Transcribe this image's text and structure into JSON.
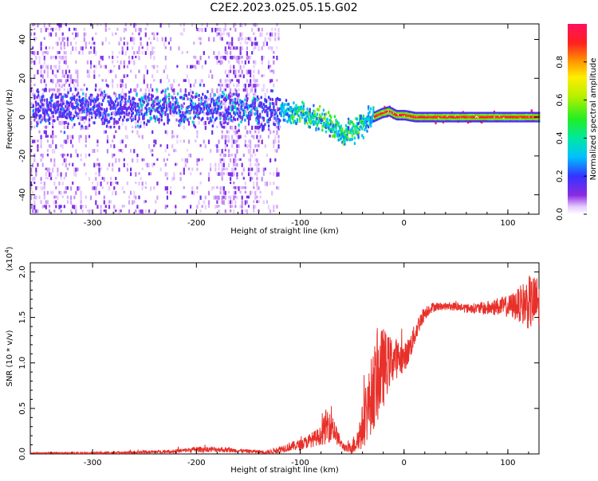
{
  "title": "C2E2.2023.025.05.15.G02",
  "chart_data": [
    {
      "type": "heatmap",
      "xlabel": "Height of straight line (km)",
      "ylabel": "Frequency (Hz)",
      "xlim": [
        -360,
        130
      ],
      "ylim": [
        -50,
        48
      ],
      "xticks": [
        -300,
        -200,
        -100,
        0,
        100
      ],
      "yticks": [
        -40,
        -20,
        0,
        20,
        40
      ],
      "ridge": {
        "description_points_x": [
          -360,
          -300,
          -250,
          -200,
          -150,
          -100,
          -80,
          -65,
          -58,
          -52,
          -45,
          -38,
          -30,
          -22,
          -15,
          -8,
          0,
          10,
          20,
          60,
          100,
          130
        ],
        "frequency": [
          5,
          5,
          5,
          5,
          4,
          2,
          -2,
          -7,
          -9,
          -7,
          -5,
          -2,
          0,
          2,
          3,
          1,
          1,
          0,
          0,
          0,
          0,
          0
        ]
      },
      "colorbar": {
        "label": "Normalized spectral amplitude",
        "range": [
          0.0,
          1.0
        ],
        "ticks": [
          0.0,
          0.2,
          0.4,
          0.6,
          0.8
        ],
        "tick_labels": [
          "0.0",
          "0.2",
          "0.4",
          "0.6",
          "0.8"
        ]
      }
    },
    {
      "type": "line",
      "xlabel": "Height of straight line (km)",
      "ylabel": "SNR (10 * v/v)",
      "yscale_label": "(x10",
      "yscale_exp": "4",
      "yscale_close": ")",
      "xlim": [
        -360,
        130
      ],
      "ylim": [
        0.0,
        2.1
      ],
      "xticks": [
        -300,
        -200,
        -100,
        0,
        100
      ],
      "yticks": [
        0.0,
        0.5,
        1.0,
        1.5,
        2.0
      ],
      "ytick_labels": [
        "0.0",
        "0.5",
        "1.0",
        "1.5",
        "2.0"
      ],
      "series": [
        {
          "name": "SNR",
          "color": "#e8302a",
          "x": [
            -360,
            -300,
            -250,
            -220,
            -200,
            -180,
            -150,
            -130,
            -120,
            -110,
            -100,
            -90,
            -80,
            -75,
            -70,
            -65,
            -60,
            -55,
            -50,
            -45,
            -40,
            -35,
            -30,
            -25,
            -20,
            -15,
            -10,
            -5,
            0,
            5,
            10,
            15,
            20,
            25,
            30,
            40,
            50,
            60,
            70,
            80,
            90,
            100,
            110,
            120,
            130
          ],
          "values": [
            0.01,
            0.01,
            0.02,
            0.03,
            0.05,
            0.05,
            0.03,
            0.02,
            0.05,
            0.08,
            0.1,
            0.15,
            0.2,
            0.3,
            0.35,
            0.2,
            0.1,
            0.05,
            0.08,
            0.15,
            0.3,
            0.5,
            0.7,
            0.85,
            0.95,
            1.0,
            1.05,
            1.05,
            1.05,
            1.15,
            1.3,
            1.45,
            1.55,
            1.6,
            1.62,
            1.62,
            1.62,
            1.6,
            1.6,
            1.6,
            1.62,
            1.62,
            1.64,
            1.66,
            1.66
          ],
          "noise": [
            0.005,
            0.01,
            0.015,
            0.02,
            0.03,
            0.03,
            0.02,
            0.02,
            0.04,
            0.05,
            0.06,
            0.08,
            0.1,
            0.2,
            0.2,
            0.1,
            0.05,
            0.04,
            0.08,
            0.15,
            0.25,
            0.35,
            0.45,
            0.5,
            0.45,
            0.3,
            0.25,
            0.2,
            0.15,
            0.15,
            0.12,
            0.1,
            0.08,
            0.06,
            0.05,
            0.04,
            0.05,
            0.05,
            0.06,
            0.08,
            0.1,
            0.12,
            0.18,
            0.3,
            0.3
          ]
        }
      ]
    }
  ]
}
